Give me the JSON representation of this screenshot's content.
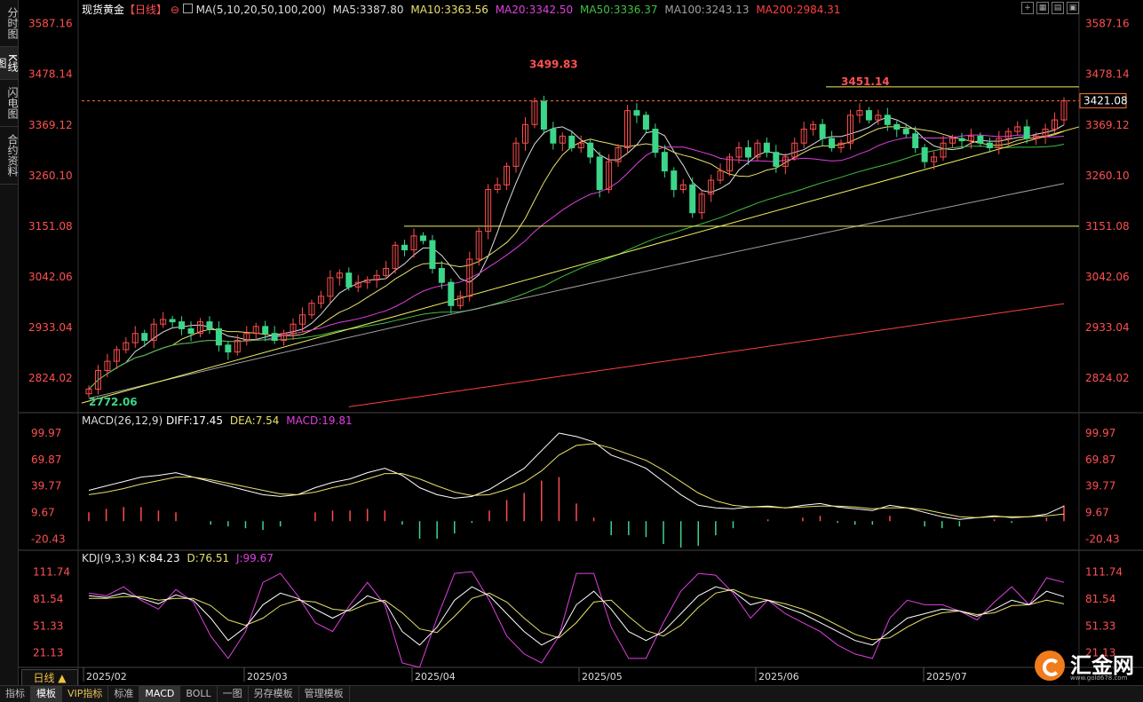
{
  "sidebar": {
    "tabs": [
      "分时图",
      "K线图",
      "闪电图",
      "合约资料"
    ],
    "active": 1
  },
  "header": {
    "symbol": "现货黄金",
    "period": "【日线】",
    "zoom_icon": "zoom-icon",
    "ma_label": "MA(5,10,20,50,100,200)",
    "ma_values": [
      {
        "text": "MA5:3387.80",
        "color": "#dddddd"
      },
      {
        "text": "MA10:3363.56",
        "color": "#e8e06a"
      },
      {
        "text": "MA20:3342.50",
        "color": "#e040e0"
      },
      {
        "text": "MA50:3336.37",
        "color": "#40c040"
      },
      {
        "text": "MA100:3243.13",
        "color": "#a0a0a0"
      },
      {
        "text": "MA200:2984.31",
        "color": "#ff4040"
      }
    ]
  },
  "macd_header": {
    "label": "MACD(26,12,9)",
    "diff": "DIFF:17.45",
    "dea": "DEA:7.54",
    "macd": "MACD:19.81"
  },
  "kdj_header": {
    "label": "KDJ(9,3,3)",
    "k": "K:84.23",
    "d": "D:76.51",
    "j": "J:99.67"
  },
  "annotations": {
    "high1": "3499.83",
    "high2": "3451.14",
    "low1": "2772.06",
    "last_price": "3421.08"
  },
  "x_labels": [
    "2025/02",
    "2025/03",
    "2025/04",
    "2025/05",
    "2025/06",
    "2025/07"
  ],
  "period_button": "日线 ▲",
  "bottom_bar": [
    "指标",
    "模板",
    "VIP指标",
    "标准",
    "MACD",
    "BOLL",
    "一图",
    "另存模板",
    "管理模板"
  ],
  "logo": {
    "text": "汇金网",
    "url": "www.gold678.com"
  },
  "colors": {
    "up": "#ff4d4d",
    "down": "#3cd68a",
    "grid": "#2a2a2a",
    "axis_text": "#ff5050"
  },
  "chart_data": [
    {
      "type": "candlestick",
      "title": "现货黄金 日线",
      "y_ticks": [
        "3587.16",
        "3478.14",
        "3369.12",
        "3260.10",
        "3151.08",
        "3042.06",
        "2933.04",
        "2824.02"
      ],
      "ylim": [
        2755,
        3600
      ],
      "x": [
        "2025/02",
        "2025/03",
        "2025/04",
        "2025/05",
        "2025/06",
        "2025/07"
      ],
      "price_path": [
        2800,
        2840,
        2860,
        2885,
        2900,
        2920,
        2905,
        2940,
        2950,
        2945,
        2930,
        2920,
        2945,
        2930,
        2895,
        2880,
        2905,
        2920,
        2935,
        2920,
        2905,
        2920,
        2940,
        2960,
        2985,
        3000,
        3040,
        3050,
        3020,
        3030,
        3035,
        3045,
        3060,
        3110,
        3100,
        3130,
        3120,
        3060,
        3030,
        2980,
        3000,
        3080,
        3140,
        3230,
        3240,
        3280,
        3330,
        3370,
        3420,
        3360,
        3330,
        3345,
        3320,
        3330,
        3300,
        3230,
        3290,
        3320,
        3400,
        3390,
        3360,
        3310,
        3270,
        3230,
        3240,
        3180,
        3220,
        3250,
        3270,
        3300,
        3320,
        3300,
        3330,
        3310,
        3280,
        3300,
        3330,
        3360,
        3370,
        3340,
        3320,
        3330,
        3390,
        3400,
        3380,
        3390,
        3370,
        3360,
        3350,
        3320,
        3290,
        3300,
        3330,
        3340,
        3335,
        3345,
        3330,
        3320,
        3340,
        3355,
        3365,
        3340,
        3345,
        3360,
        3380,
        3421
      ],
      "moving_averages": [
        "MA5",
        "MA10",
        "MA20",
        "MA50",
        "MA100",
        "MA200"
      ],
      "support_line": {
        "from": 2772.06,
        "to": 3421.08
      },
      "resistance_levels": [
        3151.08,
        3451.14
      ]
    },
    {
      "type": "line",
      "title": "MACD(26,12,9)",
      "y_ticks": [
        "99.97",
        "69.87",
        "39.77",
        "9.67",
        "-20.43"
      ],
      "ylim": [
        -30,
        105
      ],
      "diff_path": [
        35,
        40,
        45,
        50,
        52,
        55,
        50,
        45,
        40,
        35,
        30,
        28,
        30,
        38,
        44,
        48,
        55,
        60,
        52,
        38,
        30,
        26,
        28,
        36,
        48,
        60,
        80,
        100,
        96,
        90,
        75,
        68,
        60,
        45,
        30,
        18,
        15,
        14,
        16,
        17,
        15,
        18,
        20,
        16,
        14,
        12,
        18,
        15,
        10,
        5,
        2,
        4,
        6,
        4,
        5,
        8,
        17
      ],
      "dea_path": [
        30,
        33,
        37,
        42,
        46,
        50,
        50,
        47,
        43,
        39,
        35,
        31,
        30,
        33,
        38,
        42,
        48,
        54,
        54,
        48,
        40,
        33,
        29,
        30,
        36,
        44,
        57,
        75,
        86,
        88,
        83,
        76,
        69,
        58,
        45,
        32,
        23,
        18,
        16,
        16,
        15,
        16,
        17,
        17,
        16,
        14,
        15,
        15,
        13,
        9,
        5,
        4,
        5,
        5,
        5,
        6,
        8
      ]
    },
    {
      "type": "line",
      "title": "KDJ(9,3,3)",
      "y_ticks": [
        "111.74",
        "81.54",
        "51.33",
        "21.13"
      ],
      "ylim": [
        5,
        118
      ],
      "k_path": [
        85,
        83,
        88,
        82,
        76,
        86,
        80,
        60,
        35,
        50,
        75,
        88,
        82,
        70,
        60,
        70,
        85,
        78,
        45,
        30,
        50,
        80,
        95,
        85,
        65,
        45,
        30,
        40,
        75,
        90,
        70,
        45,
        35,
        45,
        65,
        85,
        95,
        90,
        75,
        80,
        72,
        65,
        55,
        45,
        35,
        30,
        45,
        60,
        65,
        70,
        68,
        62,
        70,
        80,
        75,
        90,
        84
      ],
      "d_path": [
        82,
        82,
        84,
        84,
        80,
        82,
        82,
        74,
        58,
        52,
        60,
        74,
        80,
        78,
        70,
        68,
        76,
        80,
        66,
        48,
        44,
        62,
        82,
        88,
        78,
        60,
        44,
        38,
        55,
        78,
        80,
        62,
        46,
        40,
        52,
        72,
        88,
        92,
        84,
        80,
        76,
        70,
        62,
        52,
        42,
        36,
        38,
        50,
        60,
        66,
        68,
        64,
        66,
        74,
        75,
        80,
        76
      ],
      "j_path": [
        88,
        85,
        95,
        80,
        70,
        92,
        78,
        40,
        15,
        45,
        100,
        110,
        85,
        55,
        45,
        75,
        100,
        75,
        10,
        5,
        60,
        110,
        112,
        80,
        40,
        20,
        10,
        40,
        110,
        110,
        50,
        15,
        15,
        55,
        90,
        110,
        108,
        88,
        60,
        80,
        65,
        55,
        45,
        30,
        20,
        15,
        60,
        80,
        75,
        75,
        68,
        58,
        78,
        95,
        75,
        105,
        100
      ]
    }
  ]
}
